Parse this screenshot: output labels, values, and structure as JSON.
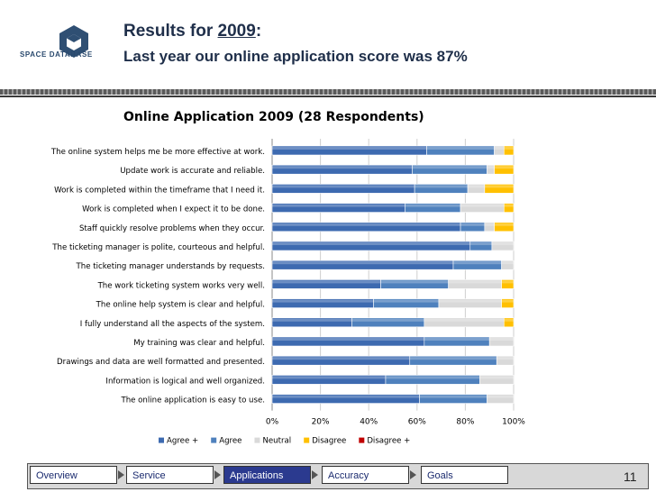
{
  "logo": {
    "text": "SPACE DATABASE",
    "mark": "cube-logo-icon"
  },
  "header": {
    "title_prefix": "Results for ",
    "title_year": "2009",
    "title_suffix": ":",
    "subtitle": "Last year our online application score was 87%"
  },
  "chart_data": {
    "type": "bar",
    "orientation": "horizontal",
    "stacked": "percent",
    "title": "Online Application 2009 (28 Respondents)",
    "categories": [
      "The online system helps me be more effective at work.",
      "Update work is accurate and reliable.",
      "Work is completed within the timeframe that I need it.",
      "Work is completed when I expect it to be done.",
      "Staff quickly resolve problems when they occur.",
      "The ticketing manager is polite, courteous and helpful.",
      "The ticketing manager understands by requests.",
      "The work ticketing system works very well.",
      "The online help system is clear and helpful.",
      "I fully understand all the aspects of the system.",
      "My training was clear and helpful.",
      "Drawings and data are well formatted and presented.",
      "Information is logical and well organized.",
      "The online application is easy to use."
    ],
    "series": [
      {
        "name": "Agree +",
        "color": "#3d6ab0",
        "values": [
          64,
          58,
          59,
          55,
          78,
          82,
          75,
          45,
          42,
          33,
          63,
          57,
          47,
          61
        ]
      },
      {
        "name": "Agree",
        "color": "#4f81bd",
        "values": [
          28,
          31,
          22,
          23,
          10,
          9,
          20,
          28,
          27,
          30,
          27,
          36,
          39,
          28
        ]
      },
      {
        "name": "Neutral",
        "color": "#d9d9d9",
        "values": [
          4,
          3,
          7,
          18,
          4,
          9,
          5,
          22,
          26,
          33,
          10,
          7,
          14,
          11
        ]
      },
      {
        "name": "Disagree",
        "color": "#ffc000",
        "values": [
          4,
          8,
          12,
          4,
          8,
          0,
          0,
          5,
          5,
          4,
          0,
          0,
          0,
          0
        ]
      },
      {
        "name": "Disagree +",
        "color": "#c00000",
        "values": [
          0,
          0,
          0,
          0,
          0,
          0,
          0,
          0,
          0,
          0,
          0,
          0,
          0,
          0
        ]
      }
    ],
    "xticks": [
      "0%",
      "20%",
      "40%",
      "60%",
      "80%",
      "100%"
    ],
    "xlim": [
      0,
      100
    ],
    "legend": "bottom"
  },
  "nav": {
    "items": [
      "Overview",
      "Service",
      "Applications",
      "Accuracy",
      "Goals"
    ],
    "active": "Applications",
    "page_number": "11"
  }
}
